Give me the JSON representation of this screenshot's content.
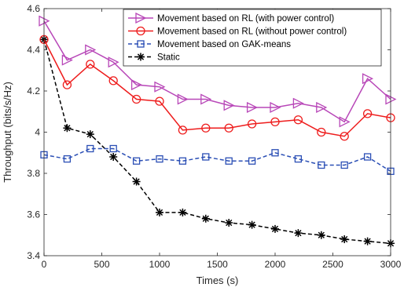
{
  "chart_data": {
    "type": "line",
    "title": "",
    "xlabel": "Times (s)",
    "ylabel": "Throughput (bits/s/Hz)",
    "xlim": [
      0,
      3000
    ],
    "ylim": [
      3.4,
      4.6
    ],
    "xticks": [
      0,
      500,
      1000,
      1500,
      2000,
      2500,
      3000
    ],
    "yticks": [
      3.4,
      3.6,
      3.8,
      4.0,
      4.2,
      4.4,
      4.6
    ],
    "xtick_labels": [
      "0",
      "500",
      "1000",
      "1500",
      "2000",
      "2500",
      "3000"
    ],
    "ytick_labels": [
      "3.4",
      "3.6",
      "3.8",
      "4",
      "4.2",
      "4.4",
      "4.6"
    ],
    "grid": false,
    "legend_position": "top-right",
    "x": [
      0,
      200,
      400,
      600,
      800,
      1000,
      1200,
      1400,
      1600,
      1800,
      2000,
      2200,
      2400,
      2600,
      2800,
      3000
    ],
    "series": [
      {
        "name": "Movement based on RL (with power control)",
        "color": "#b847b8",
        "line_style": "solid",
        "marker": "triangle-right",
        "values": [
          4.54,
          4.35,
          4.4,
          4.34,
          4.23,
          4.22,
          4.16,
          4.16,
          4.13,
          4.12,
          4.12,
          4.14,
          4.12,
          4.05,
          4.26,
          4.16
        ]
      },
      {
        "name": "Movement based on RL (without power control)",
        "color": "#ee1c1c",
        "line_style": "solid",
        "marker": "circle",
        "values": [
          4.45,
          4.23,
          4.33,
          4.25,
          4.16,
          4.15,
          4.01,
          4.02,
          4.02,
          4.04,
          4.05,
          4.06,
          4.0,
          3.98,
          4.09,
          4.07
        ]
      },
      {
        "name": "Movement based on GAK-means",
        "color": "#2b4fb5",
        "line_style": "dashed",
        "marker": "square",
        "values": [
          3.89,
          3.87,
          3.92,
          3.92,
          3.86,
          3.87,
          3.86,
          3.88,
          3.86,
          3.86,
          3.9,
          3.87,
          3.84,
          3.84,
          3.88,
          3.81
        ]
      },
      {
        "name": "Static",
        "color": "#000000",
        "line_style": "dashed",
        "marker": "asterisk",
        "values": [
          4.45,
          4.02,
          3.99,
          3.88,
          3.76,
          3.61,
          3.61,
          3.58,
          3.56,
          3.55,
          3.53,
          3.51,
          3.5,
          3.48,
          3.47,
          3.46
        ]
      }
    ]
  }
}
